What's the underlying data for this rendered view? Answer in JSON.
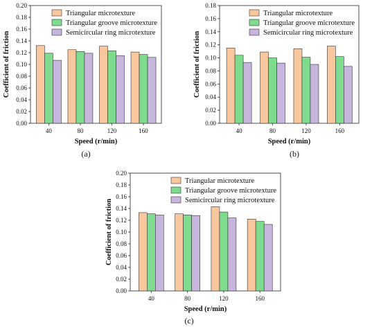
{
  "legend": {
    "entries": [
      "Triangular microtexture",
      "Triangular groove microtexture",
      "Semicircular ring microtexture"
    ],
    "colors": [
      "#f9c79e",
      "#7fdc8f",
      "#c6b5dd"
    ]
  },
  "chart_data": [
    {
      "type": "bar",
      "panel_label": "(a)",
      "xlabel": "Speed (r/min)",
      "ylabel": "Coefficient of friction",
      "categories": [
        "40",
        "80",
        "120",
        "160"
      ],
      "ylim": [
        0,
        0.2
      ],
      "yticks": [
        "0.00",
        "0.02",
        "0.04",
        "0.06",
        "0.08",
        "0.10",
        "0.12",
        "0.14",
        "0.16",
        "0.18",
        "0.20"
      ],
      "legend_position": "top-right",
      "series": [
        {
          "name": "Triangular microtexture",
          "values": [
            0.132,
            0.125,
            0.131,
            0.121
          ]
        },
        {
          "name": "Triangular groove microtexture",
          "values": [
            0.119,
            0.122,
            0.123,
            0.117
          ]
        },
        {
          "name": "Semicircular ring microtexture",
          "values": [
            0.107,
            0.119,
            0.115,
            0.112
          ]
        }
      ]
    },
    {
      "type": "bar",
      "panel_label": "(b)",
      "xlabel": "Speed (r/min)",
      "ylabel": "Coefficient of friction",
      "categories": [
        "40",
        "80",
        "120",
        "160"
      ],
      "ylim": [
        0,
        0.18
      ],
      "yticks": [
        "0.00",
        "0.02",
        "0.04",
        "0.06",
        "0.08",
        "0.10",
        "0.12",
        "0.14",
        "0.16",
        "0.18"
      ],
      "legend_position": "top-right",
      "series": [
        {
          "name": "Triangular microtexture",
          "values": [
            0.115,
            0.109,
            0.114,
            0.118
          ]
        },
        {
          "name": "Triangular groove microtexture",
          "values": [
            0.104,
            0.1,
            0.101,
            0.102
          ]
        },
        {
          "name": "Semicircular ring microtexture",
          "values": [
            0.093,
            0.092,
            0.09,
            0.087
          ]
        }
      ]
    },
    {
      "type": "bar",
      "panel_label": "(c)",
      "xlabel": "Speed (r/min)",
      "ylabel": "Coefficient of friction",
      "categories": [
        "40",
        "80",
        "120",
        "160"
      ],
      "ylim": [
        0,
        0.2
      ],
      "yticks": [
        "0.00",
        "0.02",
        "0.04",
        "0.06",
        "0.08",
        "0.10",
        "0.12",
        "0.14",
        "0.16",
        "0.18",
        "0.20"
      ],
      "legend_position": "top-right",
      "series": [
        {
          "name": "Triangular microtexture",
          "values": [
            0.133,
            0.131,
            0.143,
            0.122
          ]
        },
        {
          "name": "Triangular groove microtexture",
          "values": [
            0.131,
            0.129,
            0.134,
            0.118
          ]
        },
        {
          "name": "Semicircular ring microtexture",
          "values": [
            0.129,
            0.128,
            0.124,
            0.113
          ]
        }
      ]
    }
  ]
}
